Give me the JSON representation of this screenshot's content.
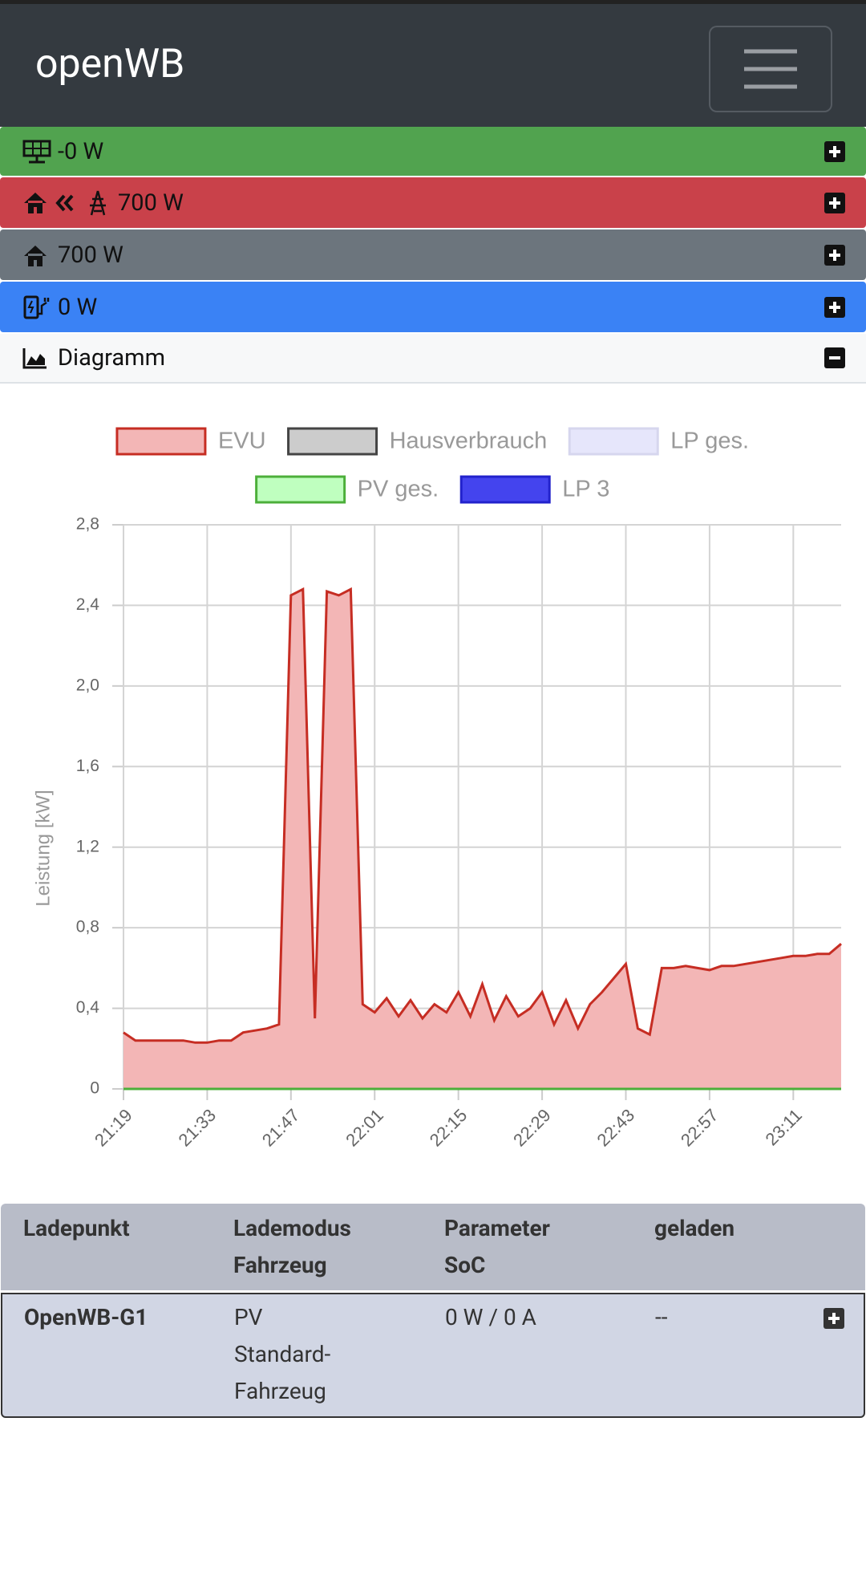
{
  "header": {
    "title": "openWB"
  },
  "status": [
    {
      "text": "-0 W"
    },
    {
      "text": "700 W"
    },
    {
      "text": "700 W"
    },
    {
      "text": "0 W"
    }
  ],
  "diagram": {
    "label": "Diagramm"
  },
  "chart_data": {
    "type": "area",
    "ylabel": "Leistung [kW]",
    "x": [
      "21:19",
      "21:21",
      "21:23",
      "21:25",
      "21:27",
      "21:29",
      "21:31",
      "21:33",
      "21:35",
      "21:37",
      "21:39",
      "21:41",
      "21:43",
      "21:45",
      "21:47",
      "21:49",
      "21:51",
      "21:53",
      "21:55",
      "21:57",
      "21:59",
      "22:01",
      "22:03",
      "22:05",
      "22:07",
      "22:09",
      "22:11",
      "22:13",
      "22:15",
      "22:17",
      "22:19",
      "22:21",
      "22:23",
      "22:25",
      "22:27",
      "22:29",
      "22:31",
      "22:33",
      "22:35",
      "22:37",
      "22:39",
      "22:41",
      "22:43",
      "22:45",
      "22:47",
      "22:49",
      "22:51",
      "22:53",
      "22:55",
      "22:57",
      "22:59",
      "23:01",
      "23:03",
      "23:05",
      "23:07",
      "23:09",
      "23:11",
      "23:13",
      "23:15",
      "23:17",
      "23:19"
    ],
    "xlim": [
      "21:19",
      "23:19"
    ],
    "xticks": [
      "21:19",
      "21:33",
      "21:47",
      "22:01",
      "22:15",
      "22:29",
      "22:43",
      "22:57",
      "23:11"
    ],
    "ylim": [
      0,
      2.8
    ],
    "yticks": [
      0,
      {
        "value": 0.4,
        "label": "0,4"
      },
      {
        "value": 0.8,
        "label": "0,8"
      },
      {
        "value": 1.2,
        "label": "1,2"
      },
      {
        "value": 1.6,
        "label": "1,6"
      },
      {
        "value": 2.0,
        "label": "2,0"
      },
      {
        "value": 2.4,
        "label": "2,4"
      },
      {
        "value": 2.8,
        "label": "2,8"
      }
    ],
    "grid": true,
    "series": [
      {
        "name": "EVU",
        "color": "#c62d23",
        "fill": "#f3b6b6",
        "values": [
          0.28,
          0.24,
          0.24,
          0.24,
          0.24,
          0.24,
          0.23,
          0.23,
          0.24,
          0.24,
          0.28,
          0.29,
          0.3,
          0.32,
          2.45,
          2.48,
          0.35,
          2.47,
          2.45,
          2.48,
          0.42,
          0.38,
          0.45,
          0.36,
          0.44,
          0.35,
          0.42,
          0.38,
          0.48,
          0.36,
          0.52,
          0.34,
          0.46,
          0.36,
          0.4,
          0.48,
          0.32,
          0.44,
          0.3,
          0.42,
          0.48,
          0.55,
          0.62,
          0.3,
          0.27,
          0.6,
          0.6,
          0.61,
          0.6,
          0.59,
          0.61,
          0.61,
          0.62,
          0.63,
          0.64,
          0.65,
          0.66,
          0.66,
          0.67,
          0.67,
          0.72
        ]
      },
      {
        "name": "Hausverbrauch",
        "color": "#444444",
        "fill": "#cccccc"
      },
      {
        "name": "LP ges.",
        "color": "#d6d6ee",
        "fill": "#e6e6fb"
      },
      {
        "name": "PV ges.",
        "color": "#4caf3a",
        "fill": "#bfffbf",
        "values": [
          0,
          0,
          0,
          0,
          0,
          0,
          0,
          0,
          0,
          0,
          0,
          0,
          0,
          0,
          0,
          0,
          0,
          0,
          0,
          0,
          0,
          0,
          0,
          0,
          0,
          0,
          0,
          0,
          0,
          0,
          0,
          0,
          0,
          0,
          0,
          0,
          0,
          0,
          0,
          0,
          0,
          0,
          0,
          0,
          0,
          0,
          0,
          0,
          0,
          0,
          0,
          0,
          0,
          0,
          0,
          0,
          0,
          0,
          0,
          0,
          0
        ]
      },
      {
        "name": "LP 3",
        "color": "#2222cc",
        "fill": "#4444ee"
      }
    ]
  },
  "table": {
    "header": [
      [
        "Ladepunkt"
      ],
      [
        "Lademodus",
        "Fahrzeug"
      ],
      [
        "Parameter",
        "SoC"
      ],
      [
        "geladen"
      ]
    ],
    "rows": [
      [
        [
          "OpenWB-G1"
        ],
        [
          "PV",
          "Standard-",
          "Fahrzeug"
        ],
        [
          "0 W / 0 A"
        ],
        [
          "--"
        ]
      ]
    ]
  }
}
